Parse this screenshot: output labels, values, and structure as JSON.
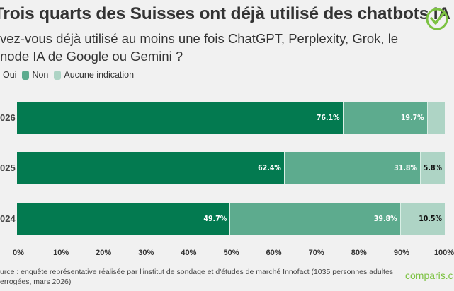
{
  "header": {
    "title": "Trois quarts des Suisses ont déjà utilisé des chatbots IA",
    "subtitle_line1": "vez-vous déjà utilisé au moins une fois ChatGPT, Perplexity, Grok, le",
    "subtitle_line2": "node IA de Google ou Gemini ?"
  },
  "badge_icon": "check-circle-icon",
  "colors": {
    "oui": "#037a50",
    "non": "#5dab8e",
    "aucune": "#aed4c5",
    "brand": "#7cc242"
  },
  "chart_data": {
    "type": "bar",
    "orientation": "horizontal",
    "stacked": true,
    "title": "Trois quarts des Suisses ont déjà utilisé des chatbots IA",
    "categories": [
      "026",
      "025",
      "024"
    ],
    "series": [
      {
        "name": "Oui",
        "values": [
          76.1,
          62.4,
          49.7
        ],
        "labels": [
          "76.1%",
          "62.4%",
          "49.7%"
        ]
      },
      {
        "name": "Non",
        "values": [
          19.7,
          31.8,
          39.8
        ],
        "labels": [
          "19.7%",
          "31.8%",
          "39.8%"
        ]
      },
      {
        "name": "Aucune indication",
        "values": [
          4.2,
          5.8,
          10.5
        ],
        "labels": [
          "",
          "5.8%",
          "10.5%"
        ]
      }
    ],
    "legend": [
      "Oui",
      "Non",
      "Aucune indication"
    ],
    "legend_position": "top-left",
    "xlim": [
      0,
      100
    ],
    "xticks": [
      "0%",
      "10%",
      "20%",
      "30%",
      "40%",
      "50%",
      "60%",
      "70%",
      "80%",
      "90%",
      "100%"
    ],
    "grid": false
  },
  "footer": {
    "source_line1": "urce : enquête représentative réalisée par l'institut de sondage et d'études de marché Innofact (1035 personnes adultes",
    "source_line2": "errogées, mars 2026)",
    "brand": "comparis.c"
  }
}
